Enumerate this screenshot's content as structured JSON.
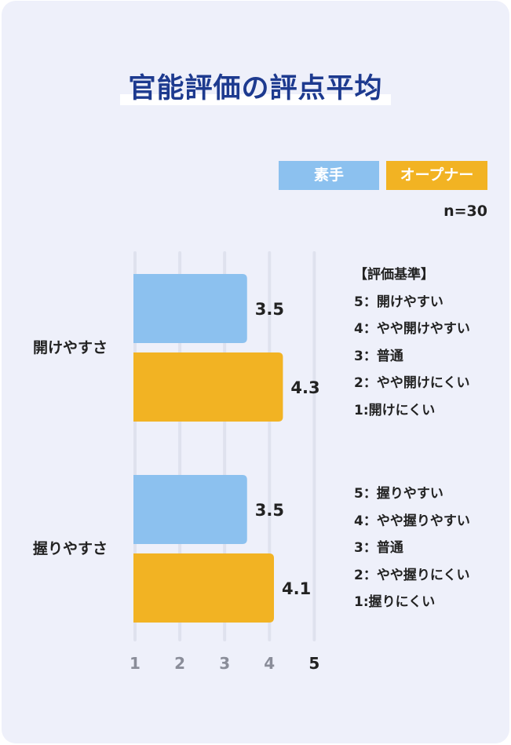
{
  "title": "官能評価の評点平均",
  "legend": [
    "素手",
    "オープナー"
  ],
  "n_label": "n=30",
  "colors": {
    "series1": "#8cc1ef",
    "series2": "#f2b323",
    "grid": "#dfe2ee",
    "title": "#1d3a8f"
  },
  "criteria": {
    "heading": "【評価基準】",
    "open": [
      "5：開けやすい",
      "4：やや開けやすい",
      "3：普通",
      "2：やや開けにくい",
      "1:開けにくい"
    ],
    "grip": [
      "5：握りやすい",
      "4：やや握りやすい",
      "3：普通",
      "2：やや握りにくい",
      "1:握りにくい"
    ]
  },
  "chart_data": {
    "type": "bar",
    "orientation": "horizontal",
    "categories": [
      "開けやすさ",
      "握りやすさ"
    ],
    "series": [
      {
        "name": "素手",
        "values": [
          3.5,
          3.5
        ]
      },
      {
        "name": "オープナー",
        "values": [
          4.3,
          4.1
        ]
      }
    ],
    "data_labels": [
      [
        "3.5",
        "3.5"
      ],
      [
        "4.3",
        "4.1"
      ]
    ],
    "xlim": [
      1,
      5
    ],
    "xticks": [
      "1",
      "2",
      "3",
      "4",
      "5"
    ],
    "grid": true,
    "legend_position": "top-right"
  }
}
